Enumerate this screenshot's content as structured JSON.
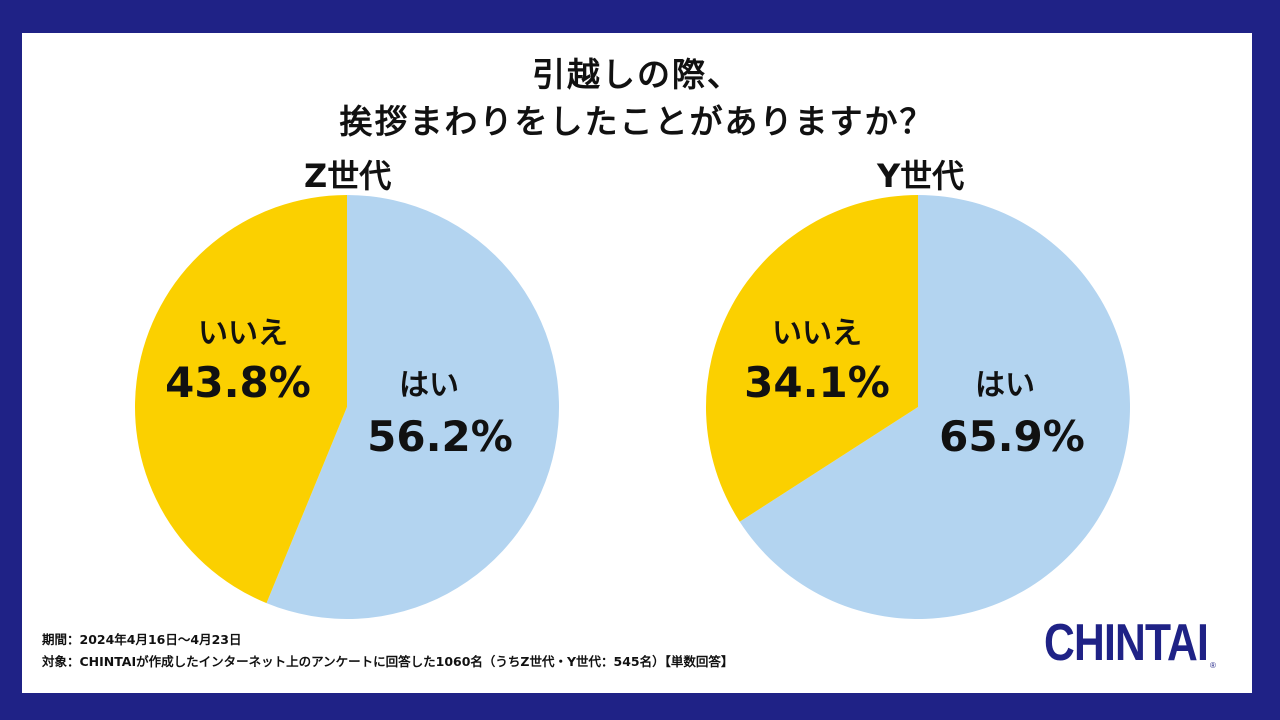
{
  "title": {
    "line1": "引越しの際、",
    "line2": "挨拶まわりをしたことがありますか？"
  },
  "colors": {
    "frame": "#1f2286",
    "yes": "#b3d4f0",
    "no": "#fbd000",
    "logo": "#1f2286"
  },
  "chart_data": [
    {
      "type": "pie",
      "title": "Z世代",
      "slices": [
        {
          "label": "はい",
          "value": 56.2,
          "display": "56.2%",
          "color": "#b3d4f0"
        },
        {
          "label": "いいえ",
          "value": 43.8,
          "display": "43.8%",
          "color": "#fbd000"
        }
      ]
    },
    {
      "type": "pie",
      "title": "Y世代",
      "slices": [
        {
          "label": "はい",
          "value": 65.9,
          "display": "65.9%",
          "color": "#b3d4f0"
        },
        {
          "label": "いいえ",
          "value": 34.1,
          "display": "34.1%",
          "color": "#fbd000"
        }
      ]
    }
  ],
  "footer": {
    "period": "期間：2024年4月16日〜4月23日",
    "target": "対象：CHINTAIが作成したインターネット上のアンケートに回答した1060名（うちZ世代・Y世代：545名）【単数回答】"
  },
  "logo": {
    "text": "CHINTAI",
    "reg": "®"
  }
}
